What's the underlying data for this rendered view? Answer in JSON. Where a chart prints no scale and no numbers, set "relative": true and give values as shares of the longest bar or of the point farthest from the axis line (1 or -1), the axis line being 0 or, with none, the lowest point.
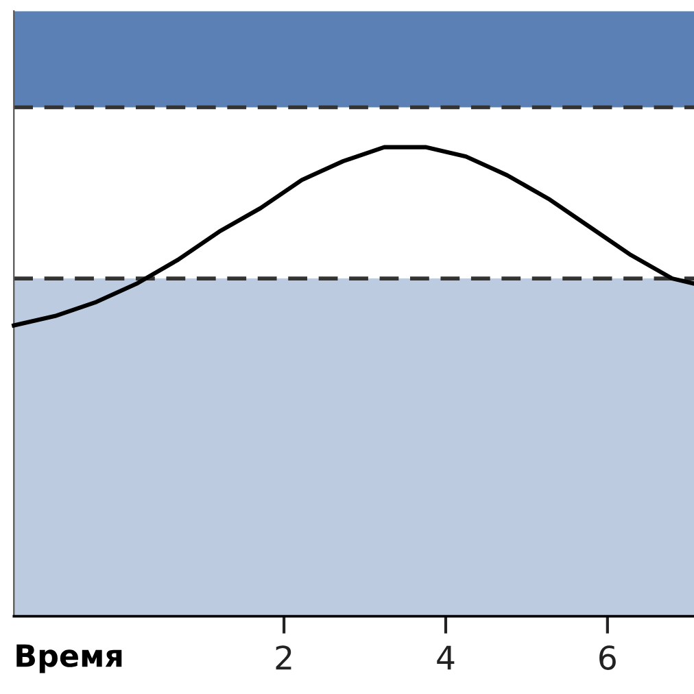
{
  "chart_data": {
    "type": "line",
    "xlabel": "Время",
    "relative": true,
    "xlim": [
      -1.34,
      7.07
    ],
    "xticks": [
      2,
      4,
      6
    ],
    "x": [
      -1.34,
      -0.83,
      -0.32,
      0.19,
      0.69,
      1.2,
      1.71,
      2.22,
      2.73,
      3.24,
      3.75,
      4.25,
      4.76,
      5.27,
      5.78,
      6.29,
      6.8,
      7.05
    ],
    "series": [
      {
        "color": "#000000",
        "values": [
          0.62,
          0.64,
          0.67,
          0.71,
          0.76,
          0.82,
          0.87,
          0.93,
          0.97,
          1.0,
          1.0,
          0.98,
          0.94,
          0.89,
          0.83,
          0.77,
          0.72,
          0.71
        ]
      }
    ],
    "bands": [
      {
        "axis": "y",
        "from": 0,
        "to": 0.72,
        "color": "#bccbe0"
      },
      {
        "axis": "y",
        "from": 1.085,
        "to": 1.29,
        "color": "#5b80b5"
      }
    ],
    "ref_lines": [
      {
        "axis": "y",
        "value": 0.72,
        "color": "#333333",
        "line_style": "dashed"
      },
      {
        "axis": "y",
        "value": 1.085,
        "color": "#333333",
        "line_style": "dashed"
      }
    ],
    "grid": false,
    "legend": false,
    "marker": "none",
    "line_style": "solid"
  }
}
